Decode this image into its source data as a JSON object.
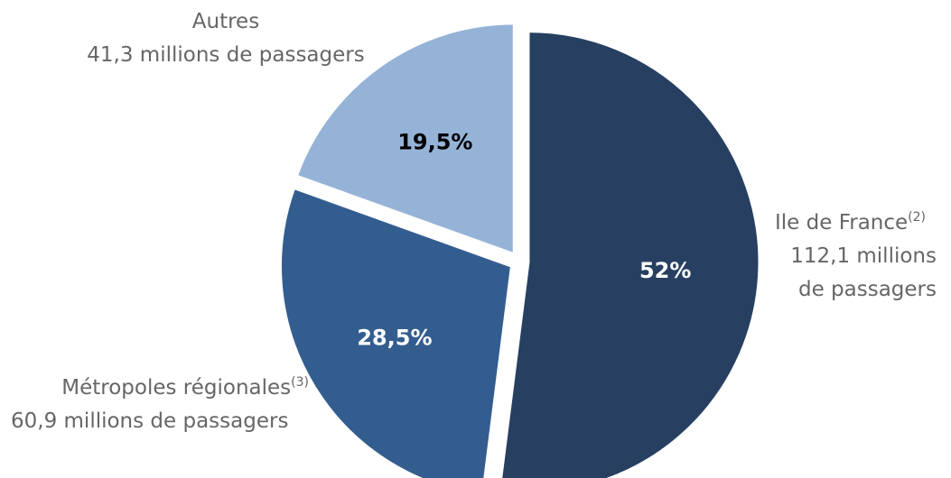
{
  "chart_data": {
    "type": "pie",
    "slices": [
      {
        "label": "Ile de France",
        "sup": "(2)",
        "value": 52.0,
        "value_label": "52%",
        "detail_lines": [
          "112,1 millions",
          "de passagers"
        ],
        "color": "#273f61",
        "label_color": "#ffffff"
      },
      {
        "label": "Métropoles régionales",
        "sup": "(3)",
        "value": 28.5,
        "value_label": "28,5%",
        "detail_lines": [
          "60,9 millions de passagers"
        ],
        "color": "#345d8f",
        "label_color": "#ffffff"
      },
      {
        "label": "Autres",
        "sup": "",
        "value": 19.5,
        "value_label": "19,5%",
        "detail_lines": [
          "41,3 millions de passagers"
        ],
        "color": "#95b3d7",
        "label_color": "#000000"
      }
    ],
    "start": "12 o'clock",
    "direction": "clockwise",
    "legend": "none",
    "explode": "all"
  }
}
